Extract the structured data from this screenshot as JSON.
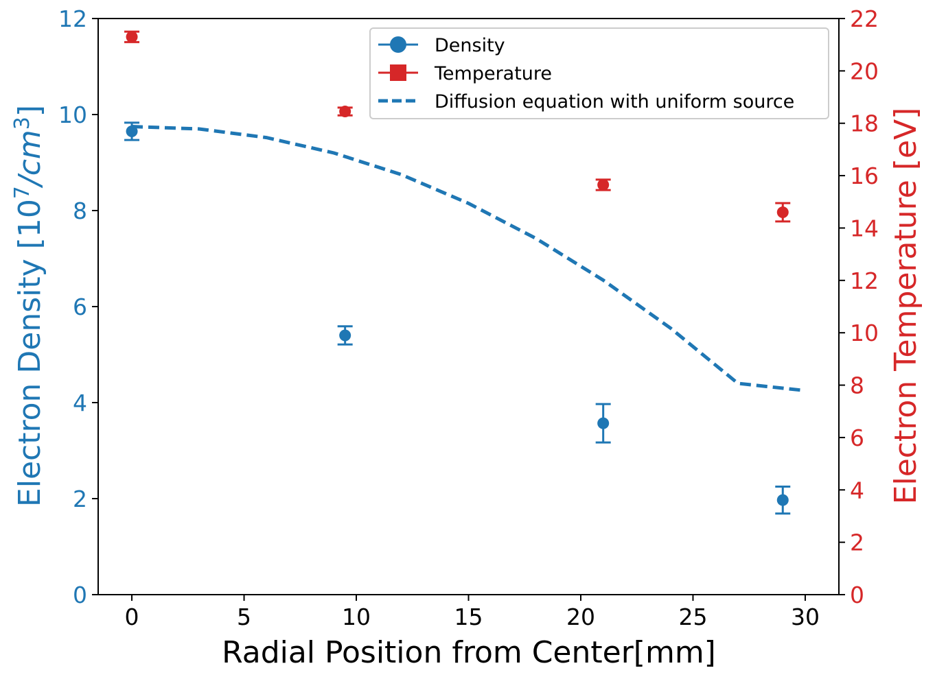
{
  "chart_data": {
    "type": "scatter",
    "title": "",
    "xlabel": "Radial Position from Center[mm]",
    "ylabel_left": {
      "prefix": "Electron Density [10",
      "sup1": "7",
      "mid": "/cm",
      "sup2": "3",
      "suffix": "]"
    },
    "ylabel_right": "Electron Temperature [eV]",
    "xlim": [
      -1.5,
      31.5
    ],
    "ylim_left": [
      0,
      12
    ],
    "ylim_right": [
      0,
      22
    ],
    "x_ticks": [
      0,
      5,
      10,
      15,
      20,
      25,
      30
    ],
    "y_left_ticks": [
      0,
      2,
      4,
      6,
      8,
      10,
      12
    ],
    "y_right_ticks": [
      0,
      2,
      4,
      6,
      8,
      10,
      12,
      14,
      16,
      18,
      20,
      22
    ],
    "colors": {
      "density": "#1f77b4",
      "temperature": "#d62728",
      "axes": "#000000"
    },
    "series": [
      {
        "name": "Density",
        "axis": "left",
        "marker": "circle",
        "x": [
          0,
          9.5,
          21,
          29
        ],
        "y": [
          9.65,
          5.4,
          3.57,
          1.97
        ],
        "yerr": [
          0.18,
          0.19,
          0.4,
          0.28
        ]
      },
      {
        "name": "Temperature",
        "axis": "right",
        "marker": "circle",
        "x": [
          0,
          9.5,
          21,
          29
        ],
        "y": [
          21.3,
          18.45,
          15.65,
          14.6
        ],
        "yerr": [
          0.2,
          0.15,
          0.2,
          0.35
        ]
      },
      {
        "name": "Diffusion equation with uniform source",
        "axis": "left",
        "style": "dashed",
        "x": [
          0,
          3,
          6,
          9,
          12,
          15,
          18,
          21,
          24,
          27,
          30
        ],
        "y": [
          9.75,
          9.7,
          9.52,
          9.2,
          8.75,
          8.15,
          7.42,
          6.55,
          5.55,
          4.4,
          4.25
        ]
      }
    ],
    "legend": {
      "position": "top-right",
      "entries": [
        "Density",
        "Temperature",
        "Diffusion equation with uniform source"
      ]
    }
  }
}
